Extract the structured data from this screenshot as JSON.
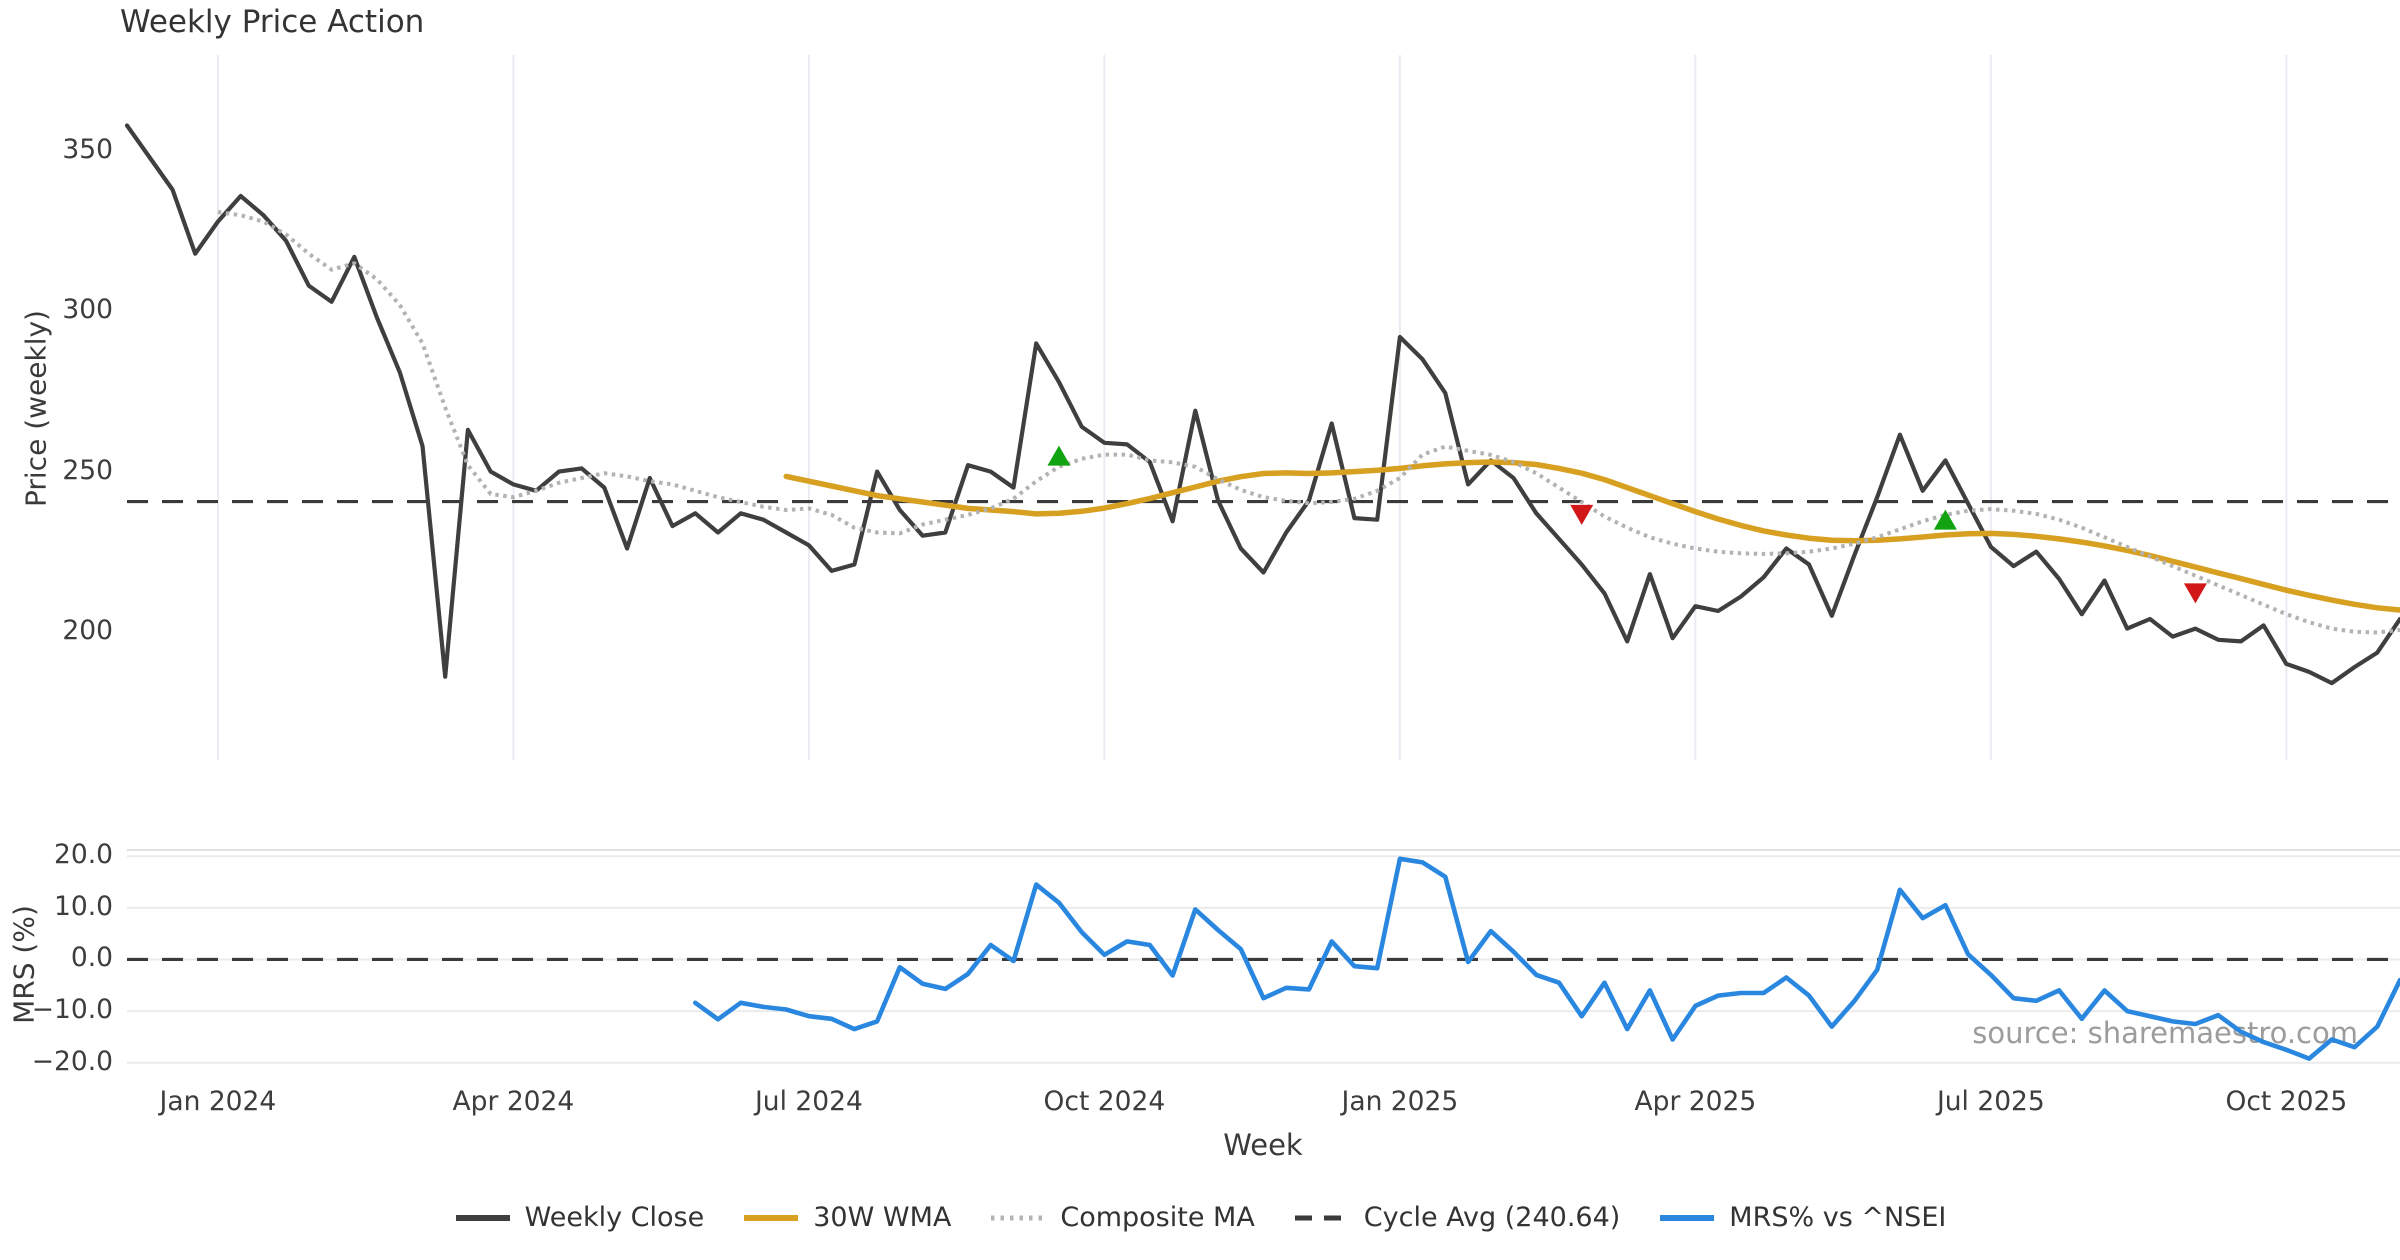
{
  "title": "Weekly Price Action",
  "watermark": "source: sharemaestro.com",
  "price_panel": {
    "ylabel": "Price (weekly)",
    "yticks": [
      {
        "value": 350,
        "label": "350"
      },
      {
        "value": 300,
        "label": "300"
      },
      {
        "value": 250,
        "label": "250"
      },
      {
        "value": 200,
        "label": "200"
      }
    ]
  },
  "mrs_panel": {
    "ylabel": "MRS (%)",
    "yticks": [
      {
        "value": 20,
        "label": "20.0"
      },
      {
        "value": 10,
        "label": "10.0"
      },
      {
        "value": 0,
        "label": "0.0"
      },
      {
        "value": -10,
        "label": "−10.0"
      },
      {
        "value": -20,
        "label": "−20.0"
      }
    ]
  },
  "x_axis": {
    "label": "Week",
    "ticks": [
      {
        "week": 4,
        "label": "Jan 2024"
      },
      {
        "week": 17,
        "label": "Apr 2024"
      },
      {
        "week": 30,
        "label": "Jul 2024"
      },
      {
        "week": 43,
        "label": "Oct 2024"
      },
      {
        "week": 56,
        "label": "Jan 2025"
      },
      {
        "week": 69,
        "label": "Apr 2025"
      },
      {
        "week": 82,
        "label": "Jul 2025"
      },
      {
        "week": 95,
        "label": "Oct 2025"
      }
    ]
  },
  "legend": [
    {
      "label": "Weekly Close",
      "style": "solid",
      "color": "#3f3f3f"
    },
    {
      "label": "30W WMA",
      "style": "solid",
      "color": "#d7a021"
    },
    {
      "label": "Composite MA",
      "style": "dotted",
      "color": "#b3b3b3"
    },
    {
      "label": "Cycle Avg (240.64)",
      "style": "dashed",
      "color": "#3a3a3a"
    },
    {
      "label": "MRS% vs ^NSEI",
      "style": "solid",
      "color": "#2a87e0"
    }
  ],
  "chart_data": {
    "type": "line",
    "x_unit": "week_index",
    "weeks_start": "2023-12-04",
    "n_weeks": 101,
    "grid": {
      "price_panel": "vertical-quarterly",
      "mrs_panel": "horizontal"
    },
    "legend_position": "bottom-center",
    "price_ylim": [
      160,
      380
    ],
    "mrs_ylim": [
      -21.8,
      21.2
    ],
    "cycle_avg": 240.64,
    "series": [
      {
        "name": "Weekly Close",
        "axis": "price",
        "start_week": 0,
        "color": "#3f3f3f",
        "width": 4.2,
        "dash": null,
        "values": [
          358,
          348,
          338,
          318,
          328,
          336,
          330,
          322,
          308,
          303,
          317,
          298,
          281,
          258,
          186,
          263,
          250,
          246,
          244,
          250,
          251,
          245,
          226,
          248,
          233,
          237,
          231,
          237,
          235,
          231,
          227,
          219,
          221,
          250,
          238,
          230,
          231,
          252,
          250,
          245,
          290,
          278,
          264,
          259,
          258.5,
          253,
          234.5,
          269,
          241,
          226,
          218.5,
          231,
          241,
          265,
          235.5,
          235,
          292,
          285,
          274.5,
          246,
          253.5,
          248,
          237,
          229,
          221,
          212,
          197,
          218,
          198,
          208,
          206.5,
          211,
          217,
          226,
          221,
          205,
          224,
          242,
          261.5,
          244,
          253.5,
          240,
          226.5,
          220.5,
          225,
          216.5,
          205.5,
          216,
          201,
          204,
          198.5,
          201,
          197.5,
          197,
          202,
          190,
          187.5,
          184,
          189,
          193.5,
          204
        ]
      },
      {
        "name": "30W WMA",
        "axis": "price",
        "start_week": 29,
        "color": "#d7a021",
        "width": 5.5,
        "dash": null,
        "values": [
          248.5,
          247,
          245.5,
          244,
          242.5,
          241.5,
          240.5,
          239.5,
          238.5,
          238,
          237.5,
          236.8,
          237,
          237.6,
          238.6,
          240,
          241.6,
          243.4,
          245.2,
          247,
          248.4,
          249.4,
          249.6,
          249.4,
          249.6,
          250,
          250.4,
          251,
          251.8,
          252.4,
          252.8,
          253,
          252.8,
          252.2,
          251,
          249.5,
          247.5,
          245,
          242.5,
          240,
          237.5,
          235.2,
          233.2,
          231.5,
          230.2,
          229.2,
          228.6,
          228.4,
          228.6,
          229,
          229.6,
          230.2,
          230.6,
          230.7,
          230.4,
          229.8,
          229,
          228,
          226.8,
          225.4,
          223.8,
          222,
          220.2,
          218.4,
          216.6,
          214.8,
          213,
          211.4,
          209.9,
          208.6,
          207.5,
          206.8
        ]
      },
      {
        "name": "Composite MA",
        "axis": "price",
        "start_week": 4,
        "color": "#b3b3b3",
        "width": 4,
        "dash": "3.5 4.5",
        "values": [
          331,
          330,
          328,
          324,
          318,
          313,
          315,
          310,
          302,
          290,
          270,
          252,
          243,
          242,
          244,
          246.5,
          248,
          249.5,
          248.5,
          247,
          246,
          244,
          242,
          240.5,
          239,
          238,
          238.5,
          236.5,
          232.5,
          231,
          230.7,
          233.5,
          235,
          236.5,
          238.5,
          241.5,
          247,
          251.5,
          254,
          255.3,
          255.3,
          253.5,
          252.9,
          251.5,
          247.6,
          244.3,
          242,
          240.9,
          240.1,
          240.5,
          241.5,
          244,
          248,
          255.3,
          257.8,
          256.5,
          255.2,
          253,
          249.5,
          245,
          240.5,
          236,
          232.5,
          229.5,
          227.5,
          226,
          225,
          224.5,
          224.3,
          224.5,
          225,
          226,
          227.5,
          229.5,
          232,
          234.5,
          236.5,
          237.8,
          238.3,
          237.8,
          236.8,
          235,
          232.5,
          229.5,
          226.5,
          223.5,
          220.5,
          217.5,
          214.5,
          211.5,
          208.5,
          205.5,
          203,
          201,
          200,
          199.8,
          200.6
        ]
      },
      {
        "name": "MRS% vs ^NSEI",
        "axis": "mrs",
        "start_week": 25,
        "color": "#2a87e0",
        "width": 4.6,
        "dash": null,
        "values": [
          -8.4,
          -11.6,
          -8.4,
          -9.2,
          -9.7,
          -11,
          -11.5,
          -13.5,
          -12,
          -1.5,
          -4.7,
          -5.7,
          -2.8,
          2.8,
          -0.3,
          14.5,
          11,
          5.3,
          0.9,
          3.5,
          2.8,
          -3.1,
          9.7,
          5.7,
          2,
          -7.5,
          -5.5,
          -5.8,
          3.5,
          -1.3,
          -1.7,
          19.5,
          18.8,
          16,
          -0.5,
          5.5,
          1.5,
          -3,
          -4.5,
          -11,
          -4.5,
          -13.5,
          -6,
          -15.5,
          -9,
          -7,
          -6.5,
          -6.5,
          -3.5,
          -7,
          -13,
          -8,
          -2,
          13.5,
          8,
          10.5,
          1,
          -3,
          -7.5,
          -8,
          -6,
          -11.5,
          -6,
          -10,
          -11,
          -12,
          -12.5,
          -10.8,
          -14,
          -16,
          -17.5,
          -19.2,
          -15.5,
          -17,
          -13,
          -4
        ]
      }
    ],
    "markers": [
      {
        "week": 41,
        "value": 255,
        "shape": "triangle-up",
        "color": "#12a312",
        "meaning": "buy-signal"
      },
      {
        "week": 64,
        "value": 236.5,
        "shape": "triangle-down",
        "color": "#d11717",
        "meaning": "sell-signal"
      },
      {
        "week": 80,
        "value": 235,
        "shape": "triangle-up",
        "color": "#12a312",
        "meaning": "buy-signal"
      },
      {
        "week": 91,
        "value": 212,
        "shape": "triangle-down",
        "color": "#d11717",
        "meaning": "sell-signal"
      }
    ]
  }
}
